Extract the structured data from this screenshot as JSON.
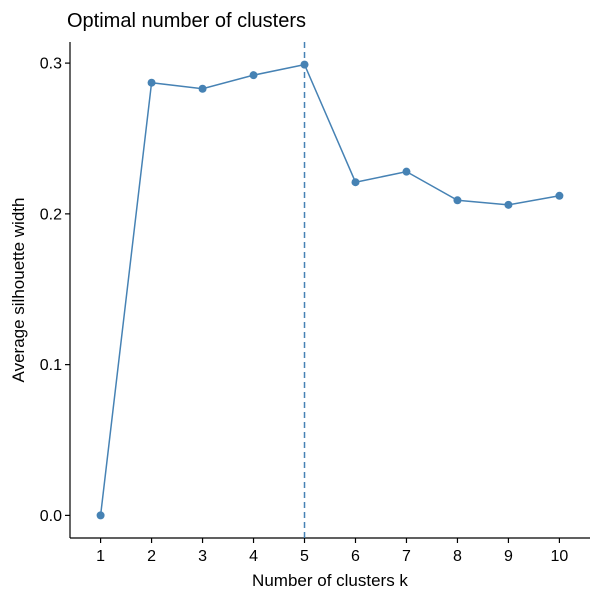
{
  "chart_data": {
    "type": "line",
    "title": "Optimal number of clusters",
    "xlabel": "Number of clusters k",
    "ylabel": "Average silhouette width",
    "x": [
      1,
      2,
      3,
      4,
      5,
      6,
      7,
      8,
      9,
      10
    ],
    "series": [
      {
        "values": [
          0.0,
          0.287,
          0.283,
          0.292,
          0.299,
          0.221,
          0.228,
          0.209,
          0.206,
          0.212
        ]
      }
    ],
    "x_ticks": [
      "1",
      "2",
      "3",
      "4",
      "5",
      "6",
      "7",
      "8",
      "9",
      "10"
    ],
    "y_ticks": [
      0.0,
      0.1,
      0.2,
      0.3
    ],
    "y_tick_labels": [
      "0.0",
      "0.1",
      "0.2",
      "0.3"
    ],
    "xlim": [
      0.4,
      10.6
    ],
    "ylim": [
      -0.015,
      0.314
    ],
    "vline_x": 5,
    "grid": false,
    "legend": "none",
    "colors": {
      "series": "#4682b4",
      "axis": "#000000",
      "background": "#ffffff"
    }
  }
}
